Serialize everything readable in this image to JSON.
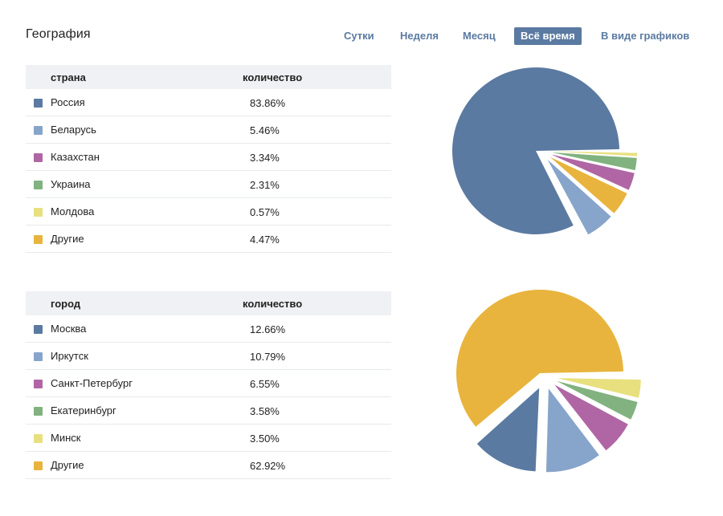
{
  "page": {
    "title": "География"
  },
  "tabs": [
    {
      "label": "Сутки",
      "active": false
    },
    {
      "label": "Неделя",
      "active": false
    },
    {
      "label": "Месяц",
      "active": false
    },
    {
      "label": "Всё время",
      "active": true
    },
    {
      "label": "В виде графиков",
      "active": false
    }
  ],
  "colors": {
    "blue": "#5b7aa1",
    "light_blue": "#87a4cb",
    "purple": "#b066a4",
    "green": "#81b27f",
    "yellow": "#e8e07e",
    "orange": "#e8b43e",
    "header_bg": "#f0f1f4"
  },
  "countries": {
    "col_name": "страна",
    "col_value": "количество",
    "rows": [
      {
        "name": "Россия",
        "value": "83.86%",
        "color": "#5b7aa1"
      },
      {
        "name": "Беларусь",
        "value": "5.46%",
        "color": "#87a4cb"
      },
      {
        "name": "Казахстан",
        "value": "3.34%",
        "color": "#b066a4"
      },
      {
        "name": "Украина",
        "value": "2.31%",
        "color": "#81b27f"
      },
      {
        "name": "Молдова",
        "value": "0.57%",
        "color": "#e8e07e"
      },
      {
        "name": "Другие",
        "value": "4.47%",
        "color": "#e8b43e"
      }
    ]
  },
  "cities": {
    "col_name": "город",
    "col_value": "количество",
    "rows": [
      {
        "name": "Москва",
        "value": "12.66%",
        "color": "#5b7aa1"
      },
      {
        "name": "Иркутск",
        "value": "10.79%",
        "color": "#87a4cb"
      },
      {
        "name": "Санкт-Петербург",
        "value": "6.55%",
        "color": "#b066a4"
      },
      {
        "name": "Екатеринбург",
        "value": "3.58%",
        "color": "#81b27f"
      },
      {
        "name": "Минск",
        "value": "3.50%",
        "color": "#e8e07e"
      },
      {
        "name": "Другие",
        "value": "62.92%",
        "color": "#e8b43e"
      }
    ]
  },
  "chart_data": [
    {
      "type": "pie",
      "categories": [
        "Россия",
        "Беларусь",
        "Казахстан",
        "Украина",
        "Молдова",
        "Другие"
      ],
      "values": [
        83.86,
        5.46,
        3.34,
        2.31,
        0.57,
        4.47
      ],
      "colors": [
        "#5b7aa1",
        "#87a4cb",
        "#b066a4",
        "#81b27f",
        "#e8e07e",
        "#e8b43e"
      ],
      "exploded": true
    },
    {
      "type": "pie",
      "categories": [
        "Москва",
        "Иркутск",
        "Санкт-Петербург",
        "Екатеринбург",
        "Минск",
        "Другие"
      ],
      "values": [
        12.66,
        10.79,
        6.55,
        3.58,
        3.5,
        62.92
      ],
      "colors": [
        "#5b7aa1",
        "#87a4cb",
        "#b066a4",
        "#81b27f",
        "#e8e07e",
        "#e8b43e"
      ],
      "exploded": true
    }
  ]
}
